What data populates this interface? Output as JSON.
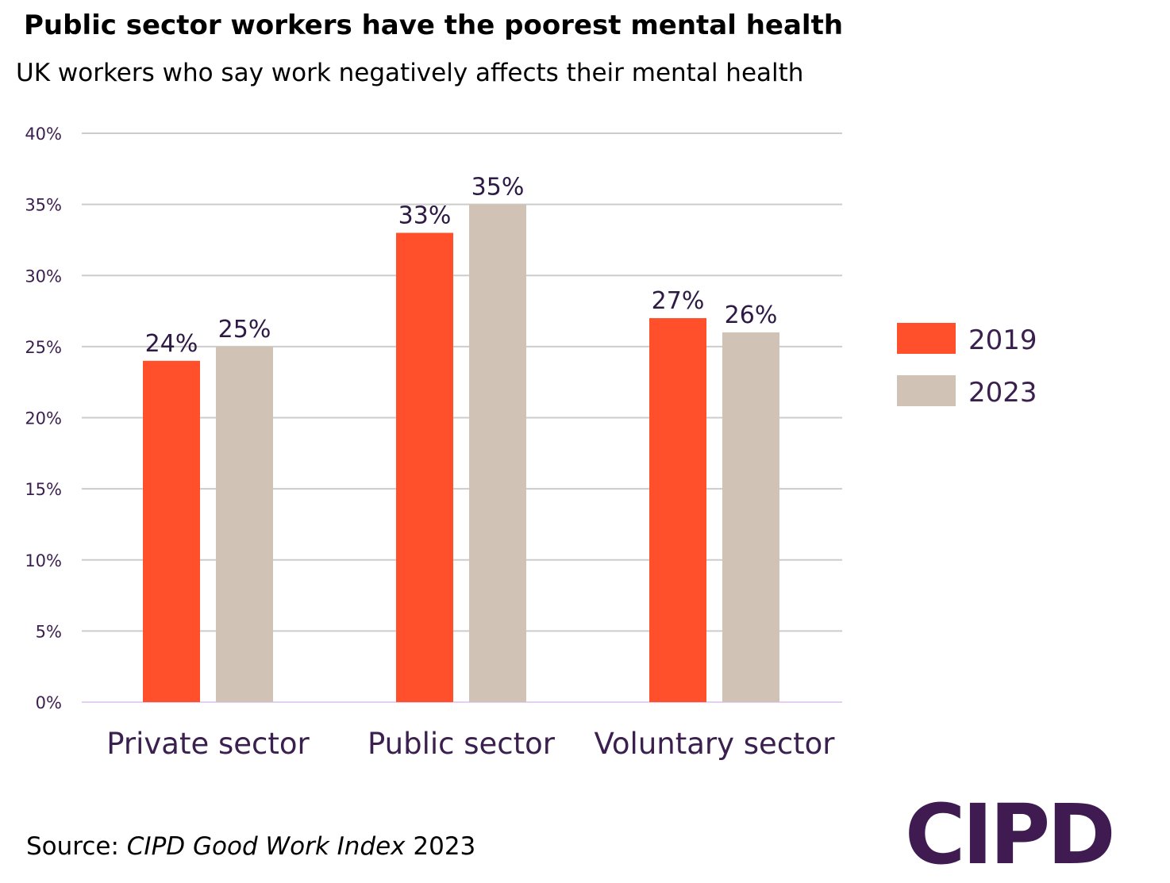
{
  "header": {
    "title": "Public sector workers have the poorest mental health",
    "subtitle": "UK workers who say work negatively affects their mental health"
  },
  "chart_data": {
    "type": "bar",
    "title": "Public sector workers have the poorest mental health",
    "subtitle": "UK workers who say work negatively affects their mental health",
    "categories": [
      "Private sector",
      "Public sector",
      "Voluntary sector"
    ],
    "series": [
      {
        "name": "2019",
        "color": "#ff4f2b",
        "values": [
          24,
          33,
          27
        ],
        "labels": [
          "24%",
          "33%",
          "27%"
        ]
      },
      {
        "name": "2023",
        "color": "#d0c2b4",
        "values": [
          25,
          35,
          26
        ],
        "labels": [
          "25%",
          "35%",
          "26%"
        ]
      }
    ],
    "y_ticks": [
      0,
      5,
      10,
      15,
      20,
      25,
      30,
      35,
      40
    ],
    "y_tick_labels": [
      "0%",
      "5%",
      "10%",
      "15%",
      "20%",
      "25%",
      "30%",
      "35%",
      "40%"
    ],
    "ylim": [
      0,
      40
    ],
    "xlabel": "",
    "ylabel": "",
    "grid": true,
    "legend_position": "right"
  },
  "footer": {
    "source_prefix": "Source: ",
    "source_title": "CIPD Good Work Index",
    "source_year": " 2023",
    "logo_text": "CIPD"
  },
  "colors": {
    "grid": "#cccccc",
    "baseline": "#e4d0f0",
    "text": "#3b1f4e",
    "brand": "#3f1b51"
  }
}
